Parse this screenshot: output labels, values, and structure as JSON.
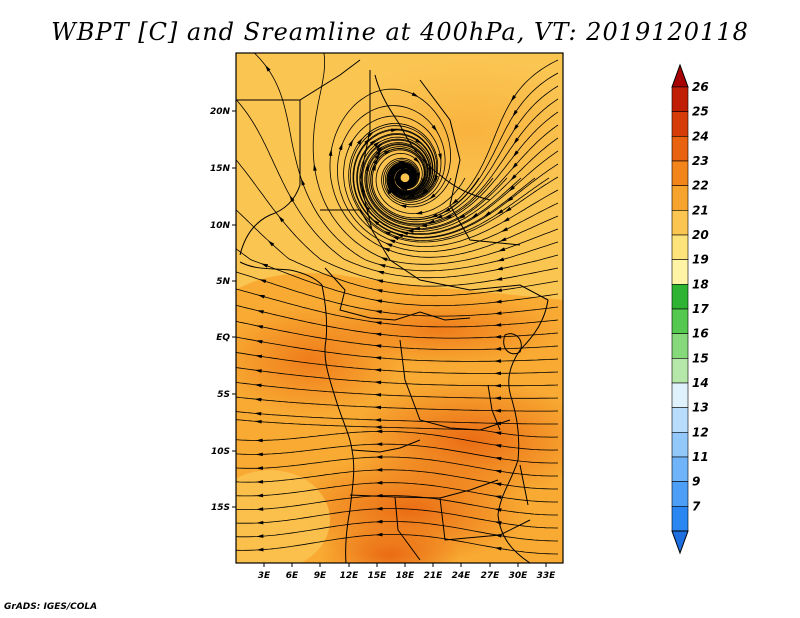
{
  "figure": {
    "title": "WBPT [C] and Sreamline at 400hPa, VT: 2019120118",
    "credit": "GrADS: IGES/COLA"
  },
  "map": {
    "x_ticks": [
      "3E",
      "6E",
      "9E",
      "12E",
      "15E",
      "18E",
      "21E",
      "24E",
      "27E",
      "30E",
      "33E"
    ],
    "y_ticks": [
      "20N",
      "15N",
      "10N",
      "5N",
      "EQ",
      "5S",
      "10S",
      "15S"
    ],
    "lon_range": [
      0,
      34
    ],
    "lat_range": [
      -19.5,
      24.5
    ]
  },
  "colorbar": {
    "levels": [
      "7",
      "9",
      "11",
      "12",
      "13",
      "14",
      "15",
      "16",
      "17",
      "18",
      "19",
      "20",
      "21",
      "22",
      "23",
      "24",
      "25",
      "26"
    ],
    "colors": [
      "#1e6fe0",
      "#2a86f0",
      "#4d9ef6",
      "#6fb3f8",
      "#93c9fa",
      "#b8dcfb",
      "#dff2fb",
      "#b5e8a8",
      "#86d97b",
      "#55c84f",
      "#2eb332",
      "#fff3a6",
      "#fde37a",
      "#fbc552",
      "#f7a42e",
      "#f2841a",
      "#e8620f",
      "#d63c07",
      "#c11f05",
      "#a80303"
    ]
  },
  "chart_data": {
    "type": "heatmap",
    "title": "WBPT [C] and Sreamline at 400hPa, VT: 2019120118",
    "variable": "WBPT [C]",
    "level": "400hPa",
    "valid_time": "2019120118",
    "x_tick_labels": [
      "3E",
      "6E",
      "9E",
      "12E",
      "15E",
      "18E",
      "21E",
      "24E",
      "27E",
      "30E",
      "33E"
    ],
    "y_tick_labels": [
      "20N",
      "15N",
      "10N",
      "5N",
      "EQ",
      "5S",
      "10S",
      "15S"
    ],
    "value_range": [
      7,
      26
    ],
    "cyclonic_center": {
      "lon": 16.5,
      "lat": 15
    }
  }
}
